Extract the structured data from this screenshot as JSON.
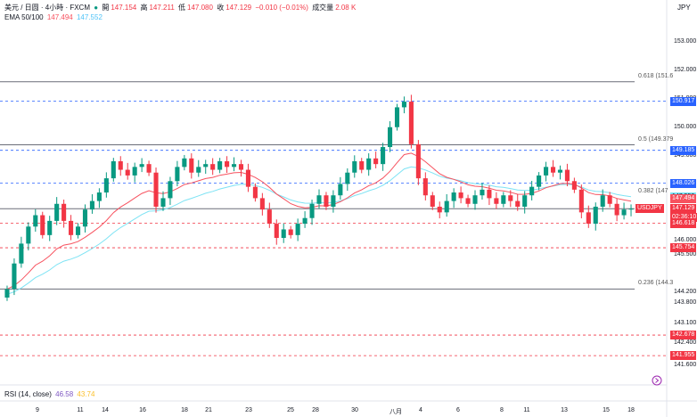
{
  "legend": {
    "symbol": "美元 / 日圆 · 4小時 · FXCM",
    "open_label": "開",
    "open": "147.154",
    "high_label": "高",
    "high": "147.211",
    "low_label": "低",
    "low": "147.080",
    "close_label": "收",
    "close": "147.129",
    "change": "−0.010 (−0.01%)",
    "volume_label": "成交量",
    "volume": "2.08 K"
  },
  "ema": {
    "label": "EMA 50/100",
    "ema50": "147.494",
    "ema100": "147.552"
  },
  "rsi": {
    "label": "RSI (14, close)",
    "value": "46.58",
    "ma": "43.74"
  },
  "currency": "JPY",
  "colors": {
    "up": "#089981",
    "down": "#f23645",
    "ema50": "#f7525f",
    "ema100": "#7de3f4",
    "dashed_blue": "#2962ff",
    "dashed_red": "#f23645",
    "fib": "#787b86"
  },
  "price_axis": [
    "153.000",
    "152.000",
    "151.000",
    "150.000",
    "149.000",
    "147.000",
    "146.000",
    "145.500",
    "144.200",
    "143.800",
    "143.100",
    "142.400",
    "141.600"
  ],
  "price_tags": [
    {
      "price": "150.917",
      "color": "#2962ff"
    },
    {
      "price": "149.185",
      "color": "#2962ff"
    },
    {
      "price": "148.026",
      "color": "#2962ff"
    },
    {
      "price": "147.552",
      "color": "#7de3f4"
    },
    {
      "price": "147.494",
      "color": "#f7525f"
    },
    {
      "price": "147.129",
      "color": "#f23645",
      "symbol": "USDJPY",
      "countdown": "02:36:10"
    },
    {
      "price": "146.618",
      "color": "#f23645"
    },
    {
      "price": "145.754",
      "color": "#f23645"
    },
    {
      "price": "142.678",
      "color": "#f23645"
    },
    {
      "price": "141.955",
      "color": "#f23645"
    }
  ],
  "fib_labels": [
    {
      "level": "0.618",
      "price": "(151.6"
    },
    {
      "level": "0.5",
      "price": "(149.379"
    },
    {
      "level": "0.382",
      "price": "(147"
    },
    {
      "level": "0.236",
      "price": "(144.3"
    }
  ],
  "x_axis": [
    "9",
    "11",
    "14",
    "16",
    "18",
    "21",
    "23",
    "25",
    "28",
    "30",
    "八月",
    "4",
    "6",
    "8",
    "11",
    "13",
    "15",
    "18"
  ],
  "chart_data": {
    "type": "candlestick",
    "title": "美元 / 日圆 · 4小時 · FXCM",
    "timeframe": "4小時",
    "ylim": [
      141.3,
      153.6
    ],
    "x_ticks": [
      "9",
      "11",
      "14",
      "16",
      "18",
      "21",
      "23",
      "25",
      "28",
      "30",
      "八月",
      "4",
      "6",
      "8",
      "11",
      "13",
      "15",
      "18"
    ],
    "grid": false,
    "series": [
      {
        "name": "EMA 50",
        "last": 147.494
      },
      {
        "name": "EMA 100",
        "last": 147.552
      }
    ],
    "price_levels": {
      "dashed_blue": [
        150.917,
        149.185,
        148.026
      ],
      "dashed_red": [
        146.618,
        145.754,
        142.678,
        141.955
      ],
      "solid": [
        151.6,
        149.379,
        147.129,
        144.3
      ]
    },
    "close_path": [
      144.3,
      145.2,
      145.9,
      146.5,
      146.9,
      146.2,
      146.7,
      147.3,
      146.7,
      146.2,
      146.5,
      147.1,
      147.4,
      147.7,
      148.2,
      148.8,
      148.5,
      148.3,
      148.6,
      148.7,
      148.4,
      147.2,
      147.5,
      148.1,
      148.6,
      148.9,
      148.4,
      148.6,
      148.7,
      148.5,
      148.8,
      148.6,
      148.7,
      148.5,
      147.9,
      147.5,
      147.1,
      146.6,
      146.1,
      146.4,
      146.2,
      146.6,
      146.8,
      147.3,
      147.6,
      147.2,
      147.6,
      148.0,
      148.4,
      148.8,
      148.5,
      148.9,
      148.7,
      149.3,
      150.0,
      150.7,
      150.9,
      149.4,
      148.2,
      147.6,
      147.2,
      147.0,
      147.4,
      147.7,
      147.5,
      147.3,
      147.6,
      147.8,
      147.5,
      147.3,
      147.6,
      147.4,
      147.2,
      147.6,
      147.9,
      148.3,
      148.6,
      148.4,
      148.5,
      148.1,
      147.8,
      147.0,
      146.6,
      147.2,
      147.6,
      147.3,
      146.9,
      147.1,
      147.13
    ]
  }
}
